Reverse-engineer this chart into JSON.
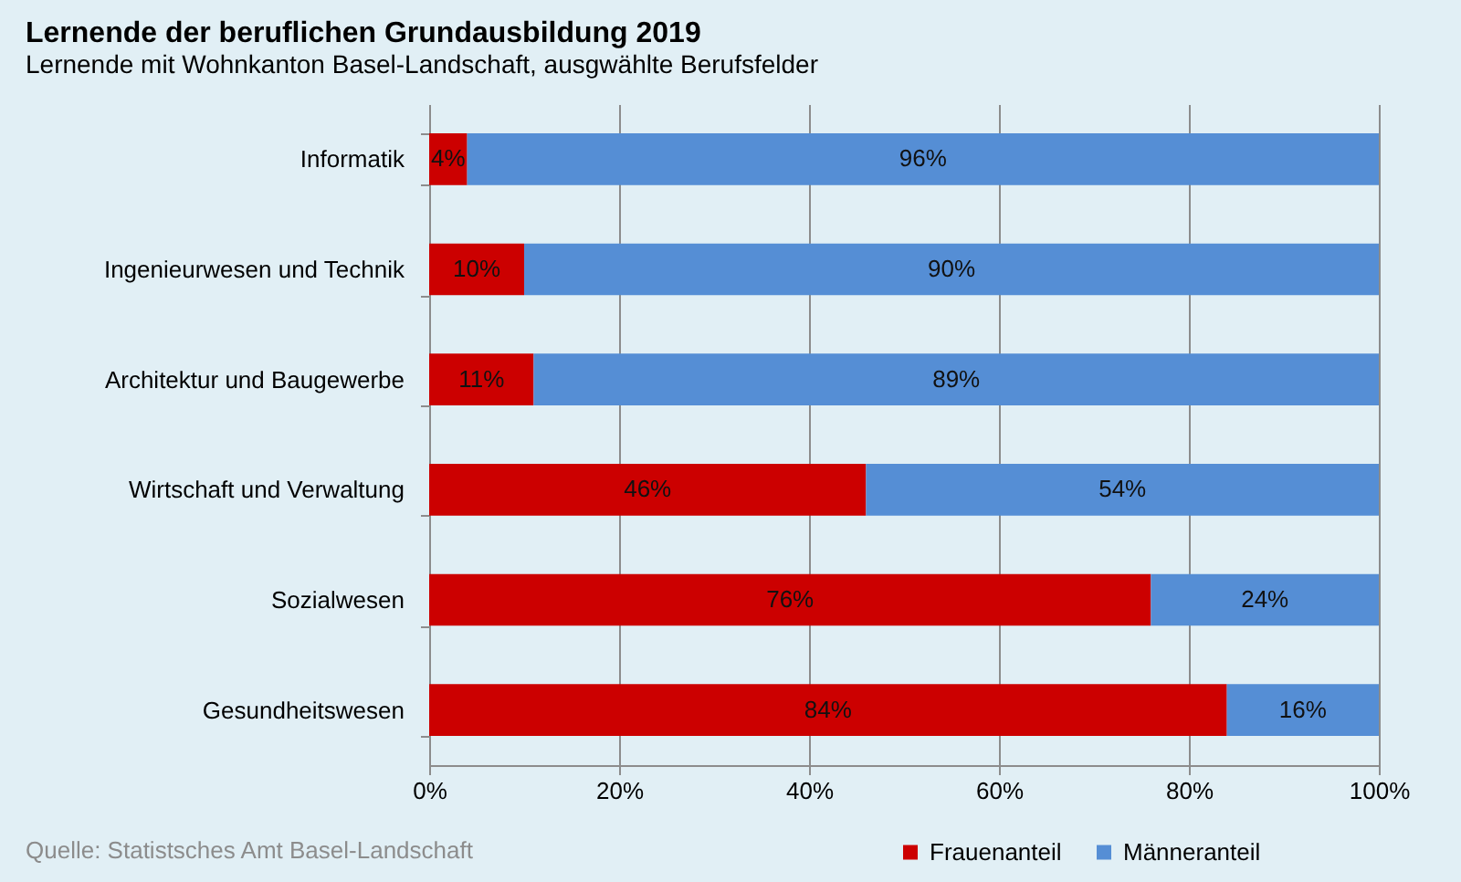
{
  "chart_data": {
    "type": "bar",
    "orientation": "horizontal",
    "stacked": true,
    "title": "Lernende der beruflichen Grundausbildung 2019",
    "subtitle": "Lernende mit Wohnkanton Basel-Landschaft, ausgwählte Berufsfelder",
    "categories": [
      "Informatik",
      "Ingenieurwesen und Technik",
      "Architektur und Baugewerbe",
      "Wirtschaft und Verwaltung",
      "Sozialwesen",
      "Gesundheitswesen"
    ],
    "series": [
      {
        "name": "Frauenanteil",
        "color": "#cc0000",
        "values": [
          4,
          10,
          11,
          46,
          76,
          84
        ],
        "value_labels": [
          "4%",
          "10%",
          "11%",
          "46%",
          "76%",
          "84%"
        ]
      },
      {
        "name": "Männeranteil",
        "color": "#558ed5",
        "values": [
          96,
          90,
          89,
          54,
          24,
          16
        ],
        "value_labels": [
          "96%",
          "90%",
          "89%",
          "54%",
          "24%",
          "16%"
        ]
      }
    ],
    "xlim": [
      0,
      100
    ],
    "xticks": [
      {
        "value": 0,
        "label": "0%"
      },
      {
        "value": 20,
        "label": "20%"
      },
      {
        "value": 40,
        "label": "40%"
      },
      {
        "value": 60,
        "label": "60%"
      },
      {
        "value": 80,
        "label": "80%"
      },
      {
        "value": 100,
        "label": "100%"
      }
    ],
    "grid": "x",
    "legend": "bottom",
    "annotations": [
      "Quelle: Statistsches Amt Basel-Landschaft"
    ]
  }
}
